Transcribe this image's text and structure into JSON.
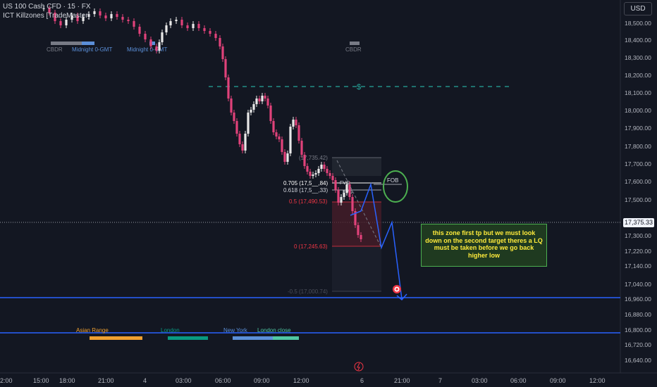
{
  "header": {
    "symbol_line": "US 100 Cash CFD · 15 · FX",
    "indicator_line": "ICT Killzones [TradeMaster]",
    "currency_button": "USD"
  },
  "price_axis": {
    "labels": [
      "18,500.00",
      "18,400.00",
      "18,300.00",
      "18,200.00",
      "18,100.00",
      "18,000.00",
      "17,900.00",
      "17,800.00",
      "17,700.00",
      "17,600.00",
      "17,500.00",
      "17,300.00",
      "17,220.00",
      "17,140.00",
      "17,040.00",
      "16,960.00",
      "16,880.00",
      "16,800.00",
      "16,720.00",
      "16,640.00"
    ],
    "current_price": "17,375.33"
  },
  "time_axis": {
    "labels": [
      "2:00",
      "15:00",
      "18:00",
      "21:00",
      "4",
      "03:00",
      "06:00",
      "09:00",
      "12:00",
      "6",
      "21:00",
      "7",
      "03:00",
      "06:00",
      "09:00",
      "12:00"
    ]
  },
  "killzones_top": {
    "labels": [
      "CBDR",
      "Midnight 0-GMT",
      "Midnight 0-GMT",
      "CBDR"
    ]
  },
  "killzones_bottom": {
    "labels": [
      "Asian Range",
      "London",
      "New York",
      "London close"
    ],
    "colors": [
      "#f0a030",
      "#089981",
      "#5b8fd8",
      "#4fc7a3"
    ]
  },
  "fib": {
    "top_label": "(17,735.42)",
    "levels": [
      {
        "text": "0.705 (17,5__,84)",
        "color": "#ffffff"
      },
      {
        "text": "0.618 (17,5__,33)",
        "color": "#d1d4dc"
      },
      {
        "text": "0.5 (17,490.53)",
        "color": "#f23645"
      },
      {
        "text": "0 (17,245.63)",
        "color": "#f23645"
      },
      {
        "text": "-0.5 (17,000.74)",
        "color": "#4a4e5a"
      }
    ],
    "side_labels": [
      "FVG",
      "FVG"
    ]
  },
  "annotations": {
    "dollar_marker": "$",
    "fob_label": "FOB",
    "note": "this zone first tp but we must look down on the second target theres a LQ must be taken before we go back higher low"
  },
  "colors": {
    "background": "#131722",
    "bull": "#e8e8e8",
    "bear": "#e0427a",
    "target_line": "#2962ff",
    "dashed_green": "#26a69a"
  }
}
